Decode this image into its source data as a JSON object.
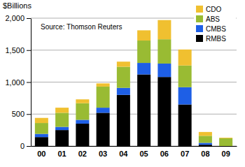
{
  "chart_data": {
    "type": "bar",
    "stacked": true,
    "grid": true,
    "legend": "top-right",
    "y_label": "$Billions",
    "annotation": "Source: Thomson Reuters",
    "categories": [
      "00",
      "01",
      "02",
      "03",
      "04",
      "05",
      "06",
      "07",
      "08",
      "09"
    ],
    "series": [
      {
        "name": "RMBS",
        "color": "#000000",
        "values": [
          140,
          250,
          350,
          520,
          800,
          1120,
          1080,
          650,
          20,
          0
        ]
      },
      {
        "name": "CMBS",
        "color": "#1e5fe6",
        "values": [
          50,
          50,
          60,
          80,
          110,
          180,
          210,
          270,
          30,
          0
        ]
      },
      {
        "name": "ABS",
        "color": "#99bb33",
        "values": [
          170,
          220,
          260,
          330,
          330,
          350,
          380,
          340,
          110,
          120
        ]
      },
      {
        "name": "CDO",
        "color": "#f0c030",
        "values": [
          80,
          80,
          60,
          50,
          80,
          160,
          300,
          250,
          60,
          10
        ]
      }
    ],
    "ylim": [
      0,
      2000
    ],
    "yticks": [
      0,
      500,
      {
        "value": 1000,
        "label": "1,000"
      },
      {
        "value": 1500,
        "label": "1,500"
      },
      {
        "value": 2000,
        "label": "2,000"
      }
    ]
  }
}
